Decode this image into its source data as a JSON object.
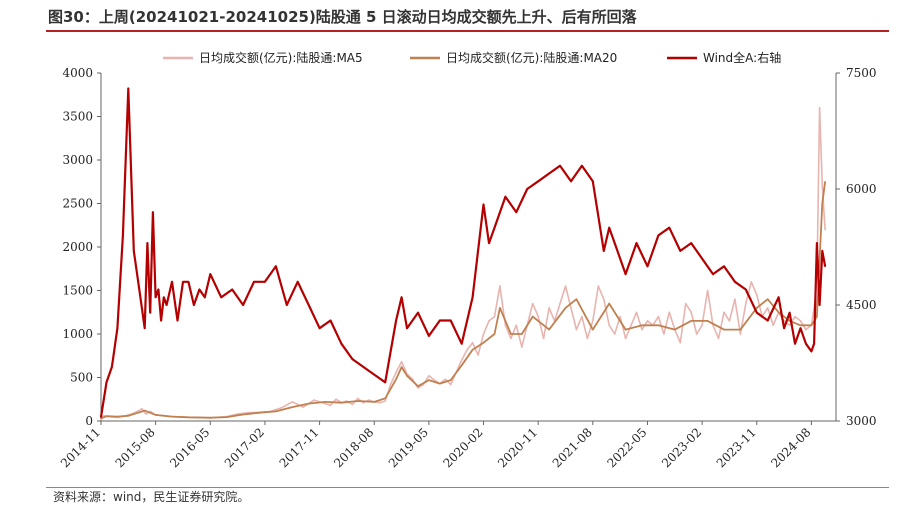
{
  "title": "图30：上周(20241021-20241025)陆股通 5 日滚动日均成交额先上升、后有所回落",
  "source": "资料来源：wind，民生证券研究院。",
  "chart_data": {
    "type": "line",
    "x_ticks": [
      "2014-11",
      "2015-08",
      "2016-05",
      "2017-02",
      "2017-11",
      "2018-08",
      "2019-05",
      "2020-02",
      "2020-11",
      "2021-08",
      "2022-05",
      "2023-02",
      "2023-11",
      "2024-08"
    ],
    "y_left": {
      "ticks": [
        0,
        500,
        1000,
        1500,
        2000,
        2500,
        3000,
        3500,
        4000
      ],
      "lim": [
        0,
        4000
      ]
    },
    "y_right": {
      "ticks": [
        3000,
        4500,
        6000,
        7500
      ],
      "lim": [
        3000,
        7500
      ]
    },
    "legend_position": "top",
    "series": [
      {
        "name": "日均成交额(亿元):陆股通:MA5",
        "color": "#e8b4b0",
        "axis": "left",
        "x": [
          0,
          0.05,
          0.15,
          0.3,
          0.45,
          0.6,
          0.75,
          0.82,
          0.9,
          1.0,
          1.15,
          1.3,
          1.5,
          1.75,
          2.0,
          2.3,
          2.5,
          2.7,
          2.9,
          3.1,
          3.3,
          3.5,
          3.7,
          3.9,
          4.1,
          4.2,
          4.3,
          4.4,
          4.5,
          4.6,
          4.7,
          4.8,
          4.9,
          5.0,
          5.1,
          5.2,
          5.3,
          5.4,
          5.5,
          5.6,
          5.7,
          5.8,
          5.9,
          6.0,
          6.1,
          6.2,
          6.3,
          6.4,
          6.5,
          6.6,
          6.7,
          6.8,
          6.9,
          7.0,
          7.1,
          7.2,
          7.3,
          7.4,
          7.5,
          7.6,
          7.7,
          7.8,
          7.9,
          8.0,
          8.1,
          8.2,
          8.3,
          8.4,
          8.5,
          8.6,
          8.7,
          8.8,
          8.9,
          9.0,
          9.1,
          9.2,
          9.3,
          9.4,
          9.5,
          9.6,
          9.7,
          9.8,
          9.9,
          10.0,
          10.1,
          10.2,
          10.3,
          10.4,
          10.5,
          10.6,
          10.7,
          10.8,
          10.9,
          11.0,
          11.1,
          11.2,
          11.3,
          11.4,
          11.5,
          11.6,
          11.7,
          11.8,
          11.9,
          12.0,
          12.1,
          12.2,
          12.3,
          12.4,
          12.5,
          12.6,
          12.7,
          12.8,
          12.9,
          13.0,
          13.05,
          13.1,
          13.15,
          13.2,
          13.25
        ],
        "values": [
          20,
          60,
          50,
          40,
          60,
          90,
          140,
          80,
          110,
          70,
          60,
          50,
          45,
          40,
          35,
          50,
          80,
          95,
          100,
          110,
          150,
          220,
          160,
          240,
          200,
          180,
          250,
          210,
          230,
          190,
          260,
          210,
          240,
          220,
          210,
          230,
          420,
          560,
          680,
          540,
          480,
          380,
          420,
          520,
          470,
          430,
          480,
          420,
          560,
          700,
          820,
          900,
          760,
          1000,
          1150,
          1200,
          1550,
          1100,
          950,
          1100,
          850,
          1100,
          1350,
          1200,
          950,
          1300,
          1150,
          1350,
          1550,
          1300,
          1050,
          1200,
          950,
          1150,
          1550,
          1400,
          1100,
          1000,
          1200,
          950,
          1100,
          1250,
          1050,
          1150,
          1100,
          1200,
          1000,
          1250,
          1050,
          900,
          1350,
          1250,
          1000,
          1100,
          1500,
          1100,
          950,
          1250,
          1150,
          1400,
          1000,
          1350,
          1600,
          1450,
          1200,
          1300,
          1100,
          1250,
          1150,
          1100,
          1200,
          1150,
          1050,
          1100,
          1300,
          1600,
          3600,
          2700,
          2200
        ]
      },
      {
        "name": "日均成交额(亿元):陆股通:MA20",
        "color": "#c08050",
        "axis": "left",
        "x": [
          0,
          0.1,
          0.3,
          0.5,
          0.7,
          0.8,
          1.0,
          1.3,
          1.6,
          2.0,
          2.3,
          2.6,
          2.9,
          3.2,
          3.5,
          3.8,
          4.1,
          4.4,
          4.7,
          5.0,
          5.2,
          5.4,
          5.5,
          5.6,
          5.8,
          6.0,
          6.2,
          6.4,
          6.6,
          6.8,
          7.0,
          7.2,
          7.3,
          7.5,
          7.7,
          7.9,
          8.2,
          8.5,
          8.7,
          9.0,
          9.3,
          9.6,
          9.9,
          10.2,
          10.5,
          10.8,
          11.1,
          11.4,
          11.7,
          12.0,
          12.2,
          12.4,
          12.6,
          12.8,
          13.0,
          13.1,
          13.2,
          13.25
        ],
        "values": [
          30,
          55,
          50,
          60,
          100,
          120,
          70,
          50,
          42,
          38,
          45,
          75,
          95,
          110,
          160,
          200,
          220,
          210,
          230,
          220,
          260,
          480,
          620,
          520,
          400,
          470,
          430,
          470,
          640,
          820,
          900,
          1000,
          1300,
          1000,
          1000,
          1200,
          1050,
          1300,
          1400,
          1050,
          1350,
          1050,
          1100,
          1100,
          1050,
          1150,
          1150,
          1050,
          1050,
          1300,
          1400,
          1250,
          1150,
          1100,
          1100,
          1200,
          2500,
          2750
        ]
      },
      {
        "name": "Wind全A:右轴",
        "color": "#b40000",
        "axis": "right",
        "x": [
          0,
          0.1,
          0.2,
          0.3,
          0.4,
          0.5,
          0.6,
          0.7,
          0.8,
          0.85,
          0.9,
          0.95,
          1.0,
          1.05,
          1.1,
          1.15,
          1.2,
          1.3,
          1.4,
          1.5,
          1.6,
          1.7,
          1.8,
          1.9,
          2.0,
          2.2,
          2.4,
          2.6,
          2.8,
          3.0,
          3.2,
          3.4,
          3.6,
          3.8,
          4.0,
          4.2,
          4.4,
          4.6,
          4.8,
          5.0,
          5.2,
          5.4,
          5.5,
          5.6,
          5.8,
          6.0,
          6.2,
          6.4,
          6.6,
          6.8,
          7.0,
          7.1,
          7.2,
          7.4,
          7.6,
          7.8,
          8.0,
          8.2,
          8.4,
          8.6,
          8.8,
          9.0,
          9.2,
          9.3,
          9.4,
          9.6,
          9.8,
          10.0,
          10.2,
          10.4,
          10.6,
          10.8,
          11.0,
          11.2,
          11.4,
          11.6,
          11.8,
          12.0,
          12.2,
          12.4,
          12.5,
          12.6,
          12.7,
          12.8,
          12.9,
          13.0,
          13.05,
          13.1,
          13.15,
          13.2,
          13.25
        ],
        "values": [
          3050,
          3500,
          3700,
          4200,
          5400,
          7300,
          5200,
          4700,
          4200,
          5300,
          4400,
          5700,
          4600,
          4700,
          4300,
          4600,
          4500,
          4800,
          4300,
          4800,
          4800,
          4500,
          4700,
          4600,
          4900,
          4600,
          4700,
          4500,
          4800,
          4800,
          5000,
          4500,
          4800,
          4500,
          4200,
          4300,
          4000,
          3800,
          3700,
          3600,
          3500,
          4300,
          4600,
          4200,
          4400,
          4100,
          4300,
          4300,
          4000,
          4600,
          5800,
          5300,
          5500,
          5900,
          5700,
          6000,
          6100,
          6200,
          6300,
          6100,
          6300,
          6100,
          5200,
          5500,
          5300,
          4900,
          5300,
          5000,
          5400,
          5500,
          5200,
          5300,
          5100,
          4900,
          5000,
          4800,
          4700,
          4400,
          4300,
          4600,
          4200,
          4400,
          4000,
          4200,
          4000,
          3900,
          4000,
          5300,
          4500,
          5200,
          5000
        ]
      }
    ]
  }
}
